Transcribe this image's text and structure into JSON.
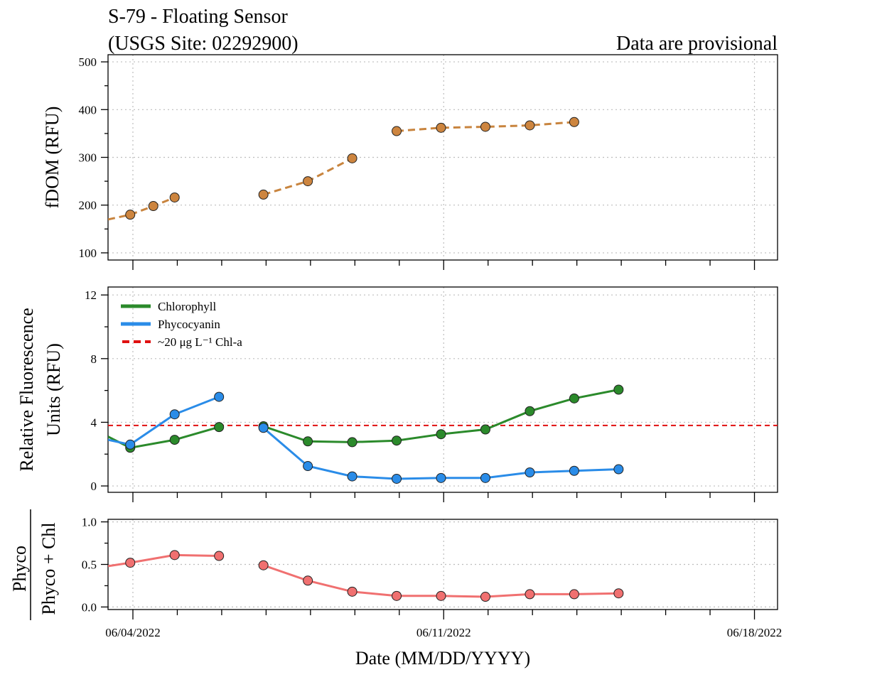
{
  "title": {
    "line1": "S-79 - Floating Sensor",
    "line2": "(USGS Site: 02292900)"
  },
  "provisional_note": "Data are provisional",
  "colors": {
    "fdom": "#cd853f",
    "fdom_line": "#c8843e",
    "chlorophyll": "#2b8a2b",
    "phycocyanin": "#2a8ce8",
    "threshold": "#e01010",
    "ratio": "#f07070",
    "provisional": "#ff0000"
  },
  "chart_data": [
    {
      "id": "fdom",
      "type": "line",
      "ylabel": "fDOM (RFU)",
      "ylim": [
        85,
        515
      ],
      "yticks": [
        100,
        200,
        300,
        400,
        500
      ],
      "ytick_labels": [
        "100",
        "200",
        "300",
        "400",
        "500"
      ],
      "grid": true,
      "series": [
        {
          "style": "dashed",
          "segments": [
            {
              "x": [
                3.44,
                3.94,
                4.46,
                4.94
              ],
              "y": [
                170,
                180,
                198,
                216
              ],
              "markers": [
                false,
                true,
                true,
                true
              ]
            },
            {
              "x": [
                6.94,
                7.94,
                8.94
              ],
              "y": [
                222,
                250,
                298
              ],
              "markers": [
                true,
                true,
                true
              ]
            },
            {
              "x": [
                9.94,
                10.94,
                11.94,
                12.94,
                13.94
              ],
              "y": [
                355,
                362,
                364,
                367,
                374
              ],
              "markers": [
                true,
                true,
                true,
                true,
                true
              ]
            }
          ]
        }
      ]
    },
    {
      "id": "rfu",
      "type": "line",
      "ylabel": [
        "Relative Fluorescence",
        "Units (RFU)"
      ],
      "ylim": [
        -0.4,
        12.5
      ],
      "yticks": [
        0,
        4,
        8,
        12
      ],
      "ytick_labels": [
        "0",
        "4",
        "8",
        "12"
      ],
      "grid": true,
      "legend": {
        "position": "top-left",
        "entries": [
          {
            "label": "Chlorophyll",
            "series": "chlorophyll"
          },
          {
            "label": "Phycocyanin",
            "series": "phycocyanin"
          },
          {
            "label": "~20 μg L⁻¹ Chl-a",
            "series": "threshold"
          }
        ]
      },
      "threshold": {
        "y": 3.8,
        "style": "dashed"
      },
      "series": [
        {
          "id": "chlorophyll",
          "name": "Chlorophyll",
          "segments": [
            {
              "x": [
                3.44,
                3.94,
                4.94,
                5.94
              ],
              "y": [
                3.1,
                2.4,
                2.9,
                3.7
              ],
              "markers": [
                false,
                true,
                true,
                true
              ]
            },
            {
              "x": [
                6.94,
                7.94,
                8.94,
                9.94,
                10.94,
                11.94,
                12.94,
                13.94,
                14.94
              ],
              "y": [
                3.75,
                2.8,
                2.75,
                2.85,
                3.25,
                3.55,
                4.7,
                5.5,
                6.05
              ],
              "markers": [
                true,
                true,
                true,
                true,
                true,
                true,
                true,
                true,
                true
              ]
            }
          ]
        },
        {
          "id": "phycocyanin",
          "name": "Phycocyanin",
          "segments": [
            {
              "x": [
                3.44,
                3.94,
                4.94,
                5.94
              ],
              "y": [
                2.9,
                2.6,
                4.5,
                5.6
              ],
              "markers": [
                false,
                true,
                true,
                true
              ]
            },
            {
              "x": [
                6.94,
                7.94,
                8.94,
                9.94,
                10.94,
                11.94,
                12.94,
                13.94,
                14.94
              ],
              "y": [
                3.65,
                1.25,
                0.6,
                0.45,
                0.5,
                0.5,
                0.85,
                0.95,
                1.05
              ],
              "markers": [
                true,
                true,
                true,
                true,
                true,
                true,
                true,
                true,
                true
              ]
            }
          ]
        }
      ]
    },
    {
      "id": "ratio",
      "type": "line",
      "ylabel": {
        "numerator": "Phyco",
        "denominator": "Phyco + Chl"
      },
      "ylim": [
        -0.03,
        1.03
      ],
      "yticks": [
        0.0,
        0.5,
        1.0
      ],
      "ytick_labels": [
        "0.0",
        "0.5",
        "1.0"
      ],
      "grid": true,
      "series": [
        {
          "id": "ratio",
          "segments": [
            {
              "x": [
                3.44,
                3.94,
                4.94,
                5.94
              ],
              "y": [
                0.48,
                0.52,
                0.61,
                0.6
              ],
              "markers": [
                false,
                true,
                true,
                true
              ]
            },
            {
              "x": [
                6.94,
                7.94,
                8.94,
                9.94,
                10.94,
                11.94,
                12.94,
                13.94,
                14.94
              ],
              "y": [
                0.49,
                0.31,
                0.18,
                0.13,
                0.13,
                0.12,
                0.15,
                0.15,
                0.16
              ],
              "markers": [
                true,
                true,
                true,
                true,
                true,
                true,
                true,
                true,
                true
              ]
            }
          ]
        }
      ]
    }
  ],
  "x_axis": {
    "label": "Date (MM/DD/YYYY)",
    "unit": "day of June 2022",
    "xlim": [
      3.44,
      18.52
    ],
    "major_ticks": [
      4,
      11,
      18
    ],
    "major_labels": [
      "06/04/2022",
      "06/11/2022",
      "06/18/2022"
    ],
    "minor_ticks": [
      5,
      6,
      7,
      8,
      9,
      10,
      12,
      13,
      14,
      15,
      16,
      17
    ]
  }
}
